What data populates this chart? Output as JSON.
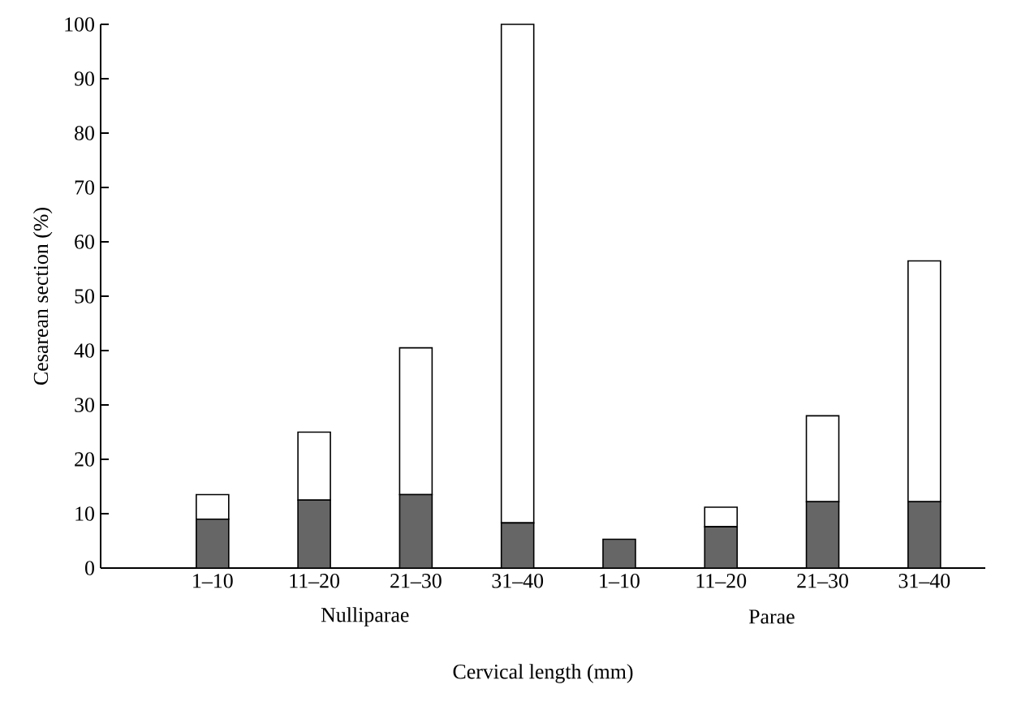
{
  "chart_data": {
    "type": "bar",
    "stacked": true,
    "ylabel": "Cesarean section (%)",
    "xlabel": "Cervical length (mm)",
    "categories": [
      "1–10",
      "11–20",
      "21–30",
      "31–40",
      "1–10",
      "11–20",
      "21–30",
      "31–40"
    ],
    "series": [
      {
        "color": "#666666",
        "values": [
          9,
          12.5,
          13.5,
          8.3,
          5.3,
          7.6,
          12.2,
          12.2
        ]
      },
      {
        "color": "#ffffff",
        "values": [
          4.5,
          12.5,
          27,
          91.7,
          0,
          3.6,
          15.8,
          44.3
        ]
      }
    ],
    "ylim": [
      0,
      100
    ],
    "yticks": [
      0,
      10,
      20,
      30,
      40,
      50,
      60,
      70,
      80,
      90,
      100
    ],
    "annotations": [
      "Nulliparae",
      "Parae"
    ],
    "grid": false
  }
}
